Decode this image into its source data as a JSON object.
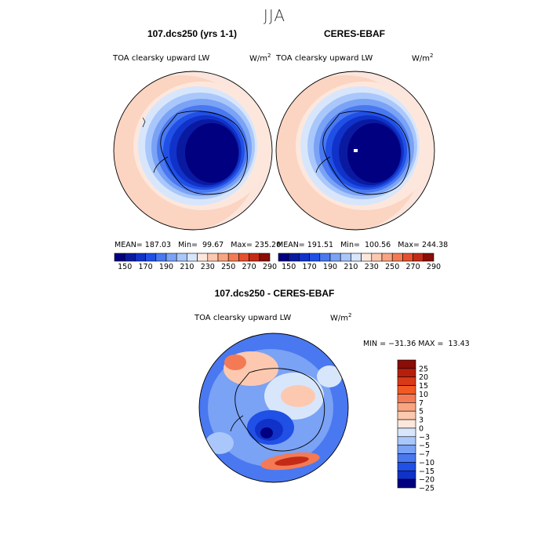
{
  "figure": {
    "title": "JJA"
  },
  "colors": {
    "scale_top": [
      "#000080",
      "#0a1aa0",
      "#1032c8",
      "#2050e6",
      "#4a78f0",
      "#7aa2f5",
      "#a9c7fa",
      "#d8e6fc",
      "#fde7dc",
      "#fcc9b0",
      "#f9a582",
      "#f47a55",
      "#e6502f",
      "#c42b16",
      "#8a0d06"
    ],
    "scale_bottom": [
      "#8a0d06",
      "#b81e0c",
      "#d83a18",
      "#f15a22",
      "#f47a55",
      "#f9a582",
      "#fcc9b0",
      "#fde7dc",
      "#d8e6fc",
      "#a9c7fa",
      "#7aa2f5",
      "#4a78f0",
      "#2050e6",
      "#1032c8",
      "#000080"
    ]
  },
  "panels": [
    {
      "title": "107.dcs250 (yrs 1-1)",
      "variable": "TOA clearsky upward LW",
      "units": "W/m",
      "units_sup": "2",
      "stats": {
        "mean_label": "MEAN=",
        "mean": "187.03",
        "min_label": "Min=",
        "min": "99.67",
        "max_label": "Max=",
        "max": "235.20"
      }
    },
    {
      "title": "CERES-EBAF",
      "variable": "TOA clearsky upward LW",
      "units": "W/m",
      "units_sup": "2",
      "stats": {
        "mean_label": "MEAN=",
        "mean": "191.51",
        "min_label": "Min=",
        "min": "100.56",
        "max_label": "Max=",
        "max": "244.38"
      }
    },
    {
      "title": "107.dcs250 - CERES-EBAF",
      "variable": "TOA clearsky upward LW",
      "units": "W/m",
      "units_sup": "2",
      "stats": {
        "text": "MIN = −31.36 MAX =  13.43"
      }
    }
  ],
  "chart_data": [
    {
      "type": "heatmap",
      "title": "107.dcs250 (yrs 1-1)",
      "subtitle": "TOA clearsky upward LW",
      "colorbar_levels": [
        150,
        170,
        190,
        210,
        230,
        250,
        270,
        290
      ],
      "colorbar_labels": [
        "150",
        "170",
        "190",
        "210",
        "230",
        "250",
        "270",
        "290"
      ],
      "summary": {
        "mean": 187.03,
        "min": 99.67,
        "max": 235.2
      }
    },
    {
      "type": "heatmap",
      "title": "CERES-EBAF",
      "subtitle": "TOA clearsky upward LW",
      "colorbar_levels": [
        150,
        170,
        190,
        210,
        230,
        250,
        270,
        290
      ],
      "colorbar_labels": [
        "150",
        "170",
        "190",
        "210",
        "230",
        "250",
        "270",
        "290"
      ],
      "summary": {
        "mean": 191.51,
        "min": 100.56,
        "max": 244.38
      }
    },
    {
      "type": "heatmap",
      "title": "107.dcs250 - CERES-EBAF",
      "subtitle": "TOA clearsky upward LW",
      "colorbar_levels": [
        25,
        20,
        15,
        10,
        7,
        5,
        3,
        0,
        -3,
        -5,
        -7,
        -10,
        -15,
        -20,
        -25
      ],
      "colorbar_labels": [
        "25",
        "20",
        "15",
        "10",
        "7",
        "5",
        "3",
        "0",
        "−3",
        "−5",
        "−7",
        "−10",
        "−15",
        "−20",
        "−25"
      ],
      "summary": {
        "min": -31.36,
        "max": 13.43
      }
    }
  ]
}
